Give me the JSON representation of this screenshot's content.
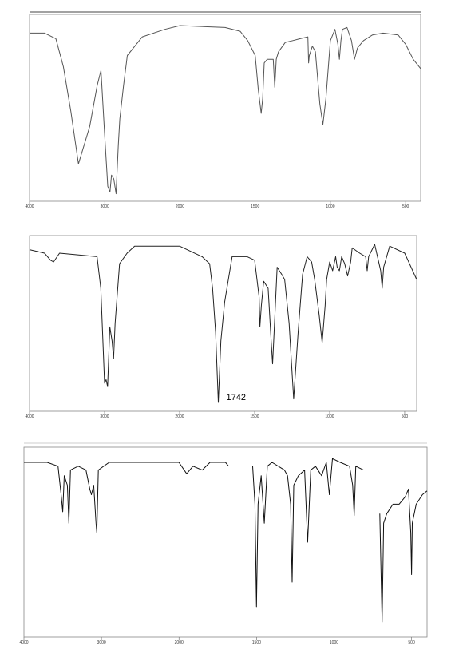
{
  "chart_data": [
    {
      "type": "line",
      "x": [
        4000,
        3800,
        3650,
        3550,
        3450,
        3350,
        3200,
        3100,
        3050,
        3000,
        2960,
        2930,
        2910,
        2880,
        2850,
        2820,
        2800,
        2750,
        2700,
        2500,
        2200,
        2000,
        1700,
        1600,
        1550,
        1500,
        1480,
        1460,
        1450,
        1440,
        1420,
        1380,
        1370,
        1360,
        1345,
        1300,
        1250,
        1200,
        1150,
        1145,
        1140,
        1120,
        1100,
        1070,
        1050,
        1030,
        1000,
        970,
        950,
        940,
        930,
        920,
        890,
        860,
        840,
        820,
        780,
        720,
        650,
        550,
        500,
        450,
        400
      ],
      "values": [
        90,
        90,
        87,
        72,
        48,
        20,
        40,
        62,
        70,
        35,
        8,
        5,
        14,
        12,
        4,
        30,
        44,
        62,
        78,
        88,
        92,
        94,
        93,
        91,
        86,
        78,
        60,
        47,
        55,
        74,
        76,
        76,
        61,
        76,
        80,
        85,
        86,
        87,
        88,
        74,
        78,
        83,
        80,
        52,
        41,
        55,
        86,
        92,
        84,
        76,
        86,
        92,
        93,
        86,
        76,
        82,
        86,
        89,
        90,
        89,
        84,
        76,
        71
      ],
      "color": "#555555",
      "xlim": [
        4000,
        400
      ],
      "xticks": [
        4000,
        3000,
        2000,
        1500,
        1000,
        500
      ],
      "ylim": [
        0,
        100
      ]
    },
    {
      "type": "line",
      "x": [
        4000,
        3800,
        3720,
        3680,
        3600,
        3100,
        3050,
        3000,
        2980,
        2960,
        2930,
        2900,
        2880,
        2860,
        2800,
        2700,
        2600,
        2000,
        1850,
        1800,
        1780,
        1760,
        1742,
        1725,
        1700,
        1650,
        1550,
        1500,
        1470,
        1465,
        1455,
        1440,
        1410,
        1390,
        1380,
        1370,
        1350,
        1320,
        1300,
        1270,
        1240,
        1210,
        1180,
        1150,
        1120,
        1100,
        1070,
        1050,
        1030,
        1020,
        1000,
        980,
        960,
        950,
        935,
        920,
        900,
        880,
        860,
        850,
        800,
        760,
        750,
        740,
        700,
        660,
        650,
        640,
        600,
        500,
        420
      ],
      "values": [
        92,
        90,
        86,
        85,
        90,
        88,
        70,
        16,
        18,
        14,
        48,
        40,
        30,
        50,
        84,
        90,
        94,
        94,
        88,
        84,
        70,
        45,
        5,
        40,
        62,
        88,
        88,
        86,
        65,
        48,
        60,
        74,
        70,
        40,
        27,
        45,
        82,
        78,
        75,
        50,
        7,
        45,
        78,
        88,
        85,
        75,
        55,
        39,
        60,
        75,
        85,
        80,
        88,
        82,
        80,
        88,
        84,
        77,
        85,
        93,
        90,
        88,
        80,
        88,
        95,
        80,
        70,
        82,
        94,
        90,
        75
      ],
      "annotations": [
        {
          "text": "1742",
          "x": 1742
        }
      ],
      "color": "#222222",
      "xlim": [
        4000,
        420
      ],
      "xticks": [
        4000,
        3000,
        2000,
        1500,
        1000,
        500
      ],
      "ylim": [
        0,
        100
      ]
    },
    {
      "type": "line",
      "x": [
        4000,
        3700,
        3560,
        3520,
        3500,
        3480,
        3440,
        3420,
        3400,
        3300,
        3200,
        3150,
        3130,
        3100,
        3070,
        3060,
        3040,
        2900,
        2500,
        2200,
        2000,
        1950,
        1910,
        1850,
        1800,
        1700,
        1680,
        1600,
        1525,
        1510,
        1500,
        1490,
        1470,
        1450,
        1430,
        1400,
        1320,
        1300,
        1280,
        1270,
        1260,
        1230,
        1190,
        1170,
        1150,
        1120,
        1080,
        1050,
        1030,
        1010,
        960,
        900,
        880,
        870,
        860,
        810,
        760,
        705,
        690,
        680,
        660,
        620,
        580,
        540,
        520,
        505,
        500,
        495,
        470,
        430,
        400
      ],
      "values": [
        92,
        92,
        90,
        75,
        66,
        85,
        80,
        60,
        88,
        90,
        88,
        78,
        75,
        80,
        60,
        55,
        88,
        92,
        92,
        92,
        92,
        86,
        90,
        88,
        92,
        92,
        90,
        null,
        90,
        70,
        16,
        70,
        85,
        60,
        90,
        92,
        88,
        85,
        70,
        29,
        80,
        85,
        88,
        50,
        88,
        90,
        85,
        92,
        75,
        94,
        92,
        90,
        80,
        64,
        90,
        88,
        null,
        65,
        8,
        60,
        65,
        70,
        70,
        74,
        78,
        55,
        33,
        60,
        70,
        75,
        77
      ],
      "color": "#111111",
      "xlim": [
        4000,
        400
      ],
      "xticks": [
        4000,
        3000,
        2000,
        1500,
        1000,
        500
      ],
      "ylim": [
        0,
        100
      ]
    }
  ]
}
